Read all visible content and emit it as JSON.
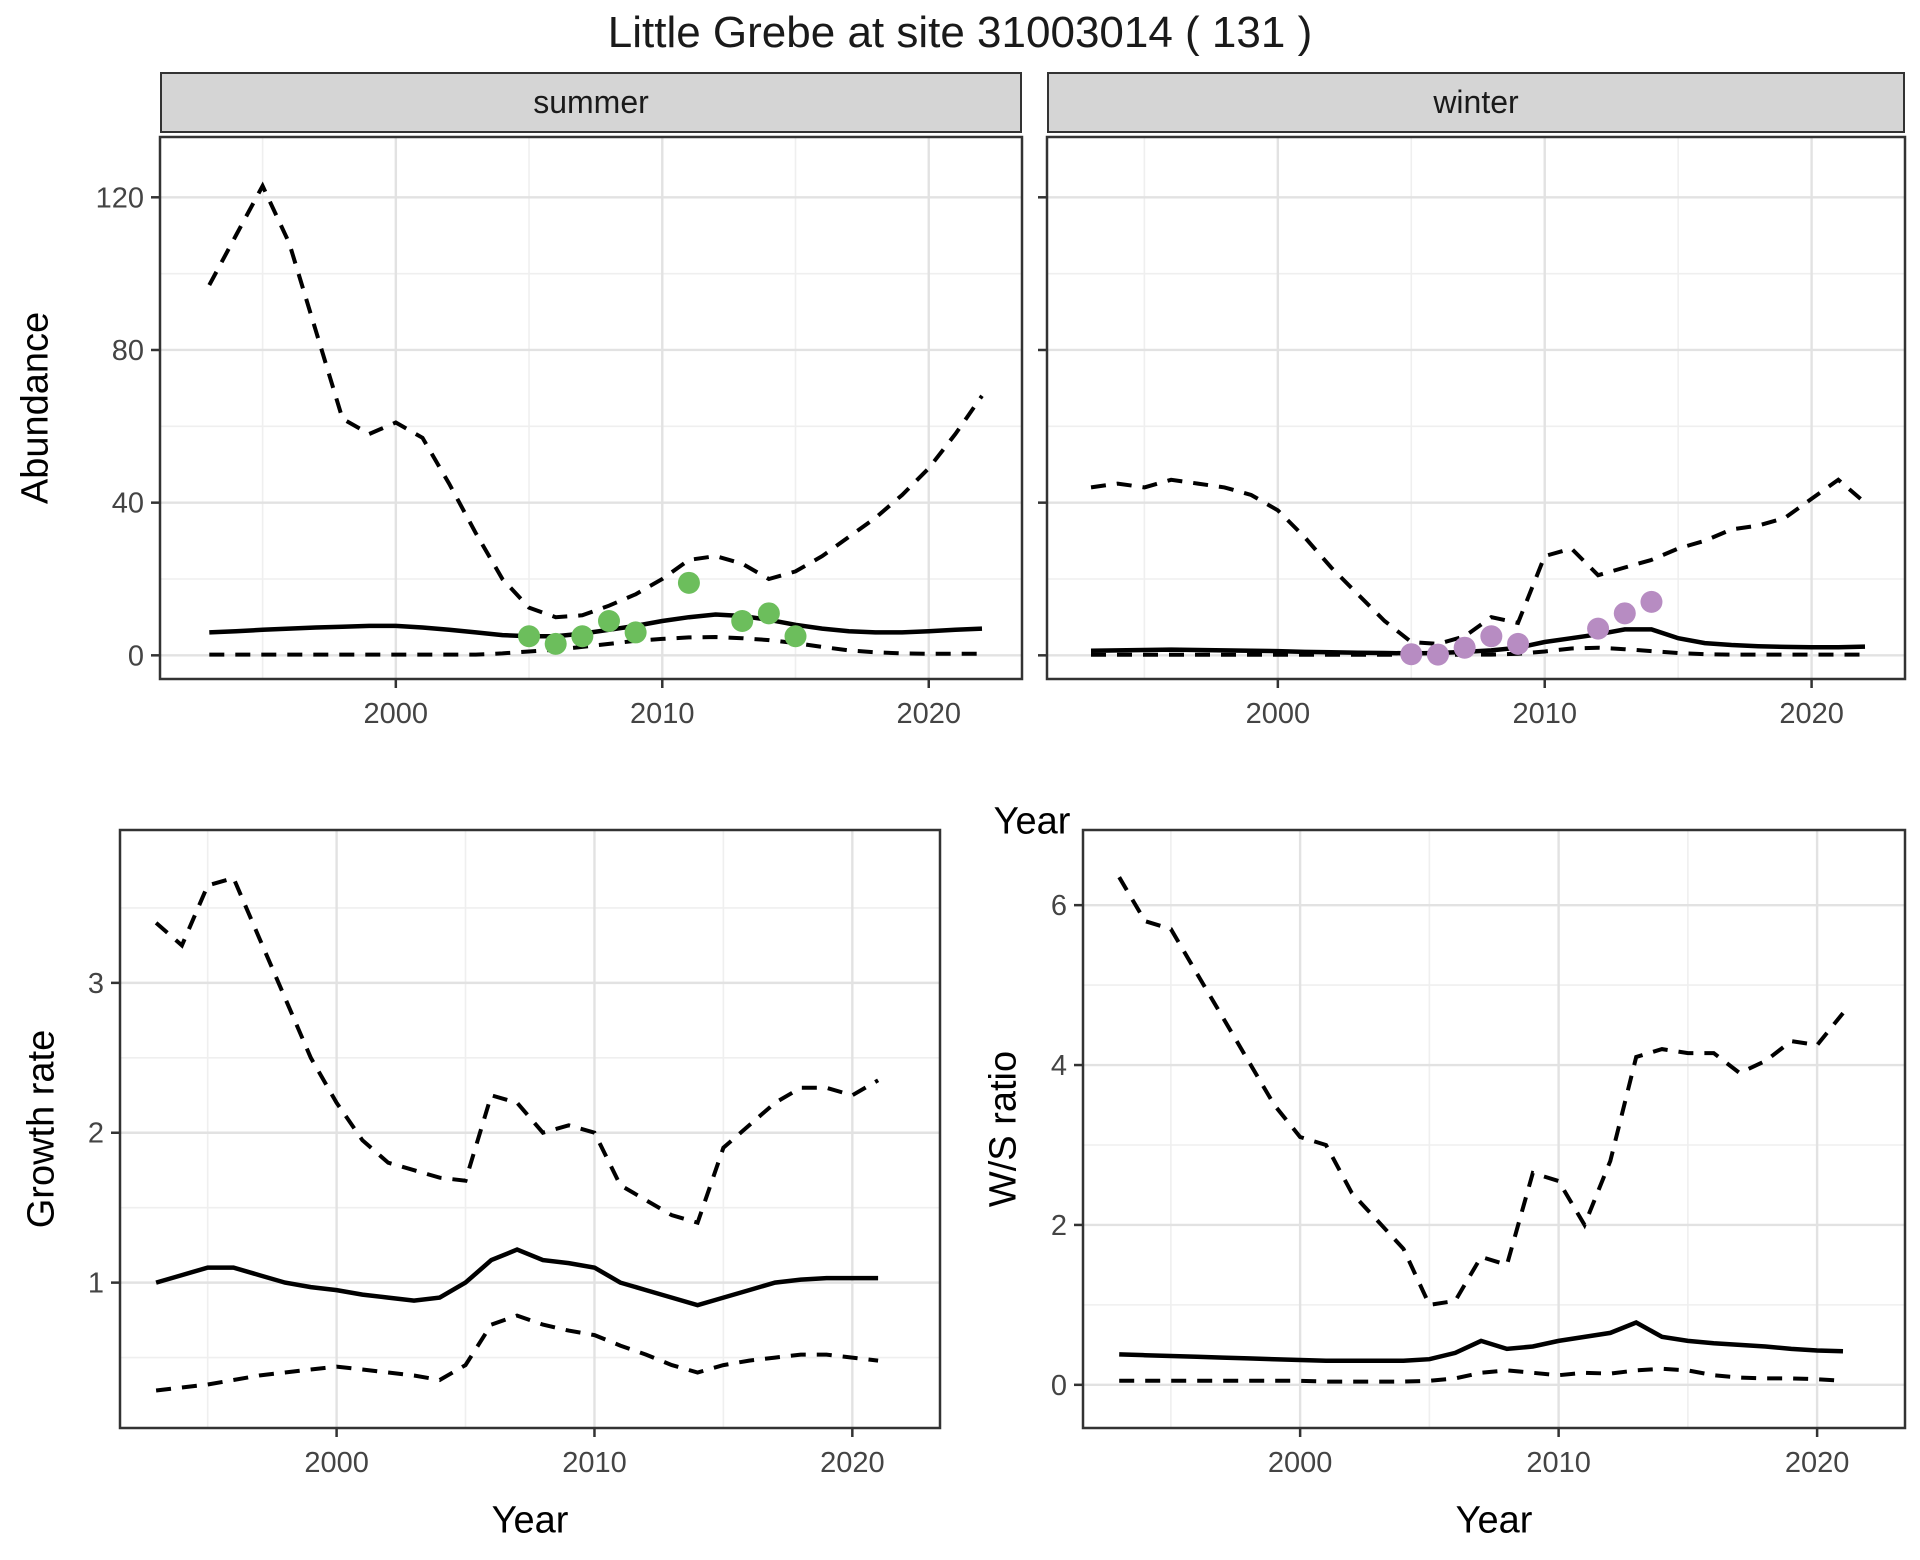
{
  "title": "Little Grebe at site 31003014 ( 131 )",
  "facets": {
    "summer": "summer",
    "winter": "winter"
  },
  "axis_titles": {
    "abundance": "Abundance",
    "year_top": "Year",
    "year_bottom_left": "Year",
    "year_bottom_right": "Year",
    "growth": "Growth rate",
    "ratio": "W/S ratio"
  },
  "colors": {
    "summer_points": "#6cbe5c",
    "winter_points": "#b78cc2",
    "line": "#000000",
    "grid_major": "#e2e2e2",
    "grid_minor": "#efefef",
    "panel_border": "#333333",
    "strip_fill": "#d5d5d5",
    "tick_text": "#444444"
  },
  "chart_data": [
    {
      "key": "summer",
      "type": "line",
      "title": "summer",
      "xlabel": "Year",
      "ylabel": "Abundance",
      "xlim": [
        1991.15,
        2023.5
      ],
      "ylim": [
        -6.2,
        135.8
      ],
      "xticks": [
        2000,
        2010,
        2020
      ],
      "xminor": [
        1995,
        2005,
        2015
      ],
      "yticks": [
        0,
        40,
        80,
        120
      ],
      "yminor": [
        20,
        60,
        100
      ],
      "x": [
        1993,
        1994,
        1995,
        1996,
        1997,
        1998,
        1999,
        2000,
        2001,
        2002,
        2003,
        2004,
        2005,
        2006,
        2007,
        2008,
        2009,
        2010,
        2011,
        2012,
        2013,
        2014,
        2015,
        2016,
        2017,
        2018,
        2019,
        2020,
        2021,
        2022
      ],
      "series": [
        {
          "name": "mean",
          "style": "solid",
          "values": [
            6,
            6.3,
            6.7,
            7,
            7.3,
            7.5,
            7.7,
            7.7,
            7.3,
            6.7,
            6,
            5.3,
            5,
            5,
            5.7,
            6.7,
            7.7,
            9,
            10,
            10.7,
            10.3,
            9.3,
            8,
            7,
            6.3,
            6,
            6,
            6.3,
            6.7,
            7
          ]
        },
        {
          "name": "upper-ci",
          "style": "dashed",
          "values": [
            97,
            110,
            123,
            108,
            85,
            62,
            58,
            61,
            57,
            45,
            32,
            20,
            12.5,
            10,
            10.5,
            13,
            16,
            20,
            25,
            26,
            24,
            20,
            22,
            26,
            31,
            36,
            42,
            49,
            58,
            68
          ]
        },
        {
          "name": "lower-ci",
          "style": "dashed",
          "values": [
            0.2,
            0.2,
            0.2,
            0.2,
            0.2,
            0.2,
            0.2,
            0.2,
            0.2,
            0.2,
            0.2,
            0.5,
            1,
            1.5,
            2.2,
            3,
            3.8,
            4.3,
            4.7,
            4.8,
            4.5,
            4,
            3.2,
            2.2,
            1.3,
            0.8,
            0.5,
            0.4,
            0.4,
            0.4
          ]
        }
      ],
      "points": {
        "name": "observed-counts",
        "color_key": "summer_points",
        "xy": [
          [
            2005,
            5
          ],
          [
            2006,
            3
          ],
          [
            2007,
            5
          ],
          [
            2008,
            9
          ],
          [
            2009,
            6
          ],
          [
            2011,
            19
          ],
          [
            2013,
            9
          ],
          [
            2014,
            11
          ],
          [
            2015,
            5
          ]
        ]
      }
    },
    {
      "key": "winter",
      "type": "line",
      "title": "winter",
      "xlabel": "Year",
      "ylabel": "Abundance",
      "xlim": [
        1991.35,
        2023.5
      ],
      "ylim": [
        -6.2,
        135.8
      ],
      "xticks": [
        2000,
        2010,
        2020
      ],
      "xminor": [
        1995,
        2005,
        2015
      ],
      "yticks": [
        0,
        40,
        80,
        120
      ],
      "yminor": [
        20,
        60,
        100
      ],
      "x": [
        1993,
        1994,
        1995,
        1996,
        1997,
        1998,
        1999,
        2000,
        2001,
        2002,
        2003,
        2004,
        2005,
        2006,
        2007,
        2008,
        2009,
        2010,
        2011,
        2012,
        2013,
        2014,
        2015,
        2016,
        2017,
        2018,
        2019,
        2020,
        2021,
        2022
      ],
      "series": [
        {
          "name": "mean",
          "style": "solid",
          "values": [
            1.2,
            1.3,
            1.4,
            1.5,
            1.4,
            1.3,
            1.2,
            1.1,
            0.9,
            0.8,
            0.7,
            0.6,
            0.5,
            0.6,
            0.9,
            1.3,
            2,
            3.5,
            4.5,
            5.5,
            6.8,
            6.8,
            4.5,
            3.2,
            2.7,
            2.4,
            2.2,
            2.1,
            2.1,
            2.3
          ]
        },
        {
          "name": "upper-ci",
          "style": "dashed",
          "values": [
            44,
            45,
            44,
            46,
            45,
            44,
            42,
            38,
            31,
            23,
            16,
            9,
            3.5,
            3,
            5,
            10,
            8.5,
            26,
            28,
            21,
            23,
            25,
            28,
            30,
            33,
            34,
            36,
            41,
            46,
            40
          ]
        },
        {
          "name": "lower-ci",
          "style": "dashed",
          "values": [
            0.15,
            0.15,
            0.15,
            0.15,
            0.15,
            0.15,
            0.15,
            0.15,
            0.15,
            0.15,
            0.15,
            0.15,
            0.15,
            0.15,
            0.15,
            0.2,
            0.4,
            1,
            1.8,
            2,
            1.6,
            1.1,
            0.6,
            0.3,
            0.2,
            0.2,
            0.2,
            0.2,
            0.2,
            0.2
          ]
        }
      ],
      "points": {
        "name": "observed-counts",
        "color_key": "winter_points",
        "xy": [
          [
            2005,
            0.3
          ],
          [
            2006,
            0.2
          ],
          [
            2007,
            2
          ],
          [
            2008,
            5
          ],
          [
            2009,
            3
          ],
          [
            2012,
            7
          ],
          [
            2013,
            11
          ],
          [
            2014,
            14
          ]
        ]
      }
    },
    {
      "key": "growth",
      "type": "line",
      "title": "Growth rate",
      "xlabel": "Year",
      "ylabel": "Growth rate",
      "xlim": [
        1991.6,
        2023.4
      ],
      "ylim": [
        0.03,
        4.02
      ],
      "xticks": [
        2000,
        2010,
        2020
      ],
      "xminor": [
        1995,
        2005,
        2015
      ],
      "yticks": [
        1,
        2,
        3
      ],
      "yminor": [
        0.5,
        1.5,
        2.5,
        3.5
      ],
      "x": [
        1993,
        1994,
        1995,
        1996,
        1997,
        1998,
        1999,
        2000,
        2001,
        2002,
        2003,
        2004,
        2005,
        2006,
        2007,
        2008,
        2009,
        2010,
        2011,
        2012,
        2013,
        2014,
        2015,
        2016,
        2017,
        2018,
        2019,
        2020,
        2021
      ],
      "series": [
        {
          "name": "mean",
          "style": "solid",
          "values": [
            1.0,
            1.05,
            1.1,
            1.1,
            1.05,
            1.0,
            0.97,
            0.95,
            0.92,
            0.9,
            0.88,
            0.9,
            1.0,
            1.15,
            1.22,
            1.15,
            1.13,
            1.1,
            1.0,
            0.95,
            0.9,
            0.85,
            0.9,
            0.95,
            1.0,
            1.02,
            1.03,
            1.03,
            1.03
          ]
        },
        {
          "name": "upper-ci",
          "style": "dashed",
          "values": [
            3.4,
            3.25,
            3.65,
            3.7,
            3.3,
            2.9,
            2.5,
            2.2,
            1.95,
            1.8,
            1.75,
            1.7,
            1.68,
            2.25,
            2.2,
            2.0,
            2.05,
            2.0,
            1.65,
            1.55,
            1.45,
            1.4,
            1.9,
            2.05,
            2.2,
            2.3,
            2.3,
            2.25,
            2.35
          ]
        },
        {
          "name": "lower-ci",
          "style": "dashed",
          "values": [
            0.28,
            0.3,
            0.32,
            0.35,
            0.38,
            0.4,
            0.42,
            0.44,
            0.42,
            0.4,
            0.38,
            0.35,
            0.45,
            0.72,
            0.78,
            0.72,
            0.68,
            0.65,
            0.58,
            0.52,
            0.45,
            0.4,
            0.45,
            0.48,
            0.5,
            0.52,
            0.52,
            0.5,
            0.48
          ]
        }
      ],
      "points": null
    },
    {
      "key": "ratio",
      "type": "line",
      "title": "W/S ratio",
      "xlabel": "Year",
      "ylabel": "W/S ratio",
      "xlim": [
        1991.6,
        2023.4
      ],
      "ylim": [
        -0.54,
        6.94
      ],
      "xticks": [
        2000,
        2010,
        2020
      ],
      "xminor": [
        1995,
        2005,
        2015
      ],
      "yticks": [
        0,
        2,
        4,
        6
      ],
      "yminor": [
        1,
        3,
        5
      ],
      "x": [
        1993,
        1994,
        1995,
        1996,
        1997,
        1998,
        1999,
        2000,
        2001,
        2002,
        2003,
        2004,
        2005,
        2006,
        2007,
        2008,
        2009,
        2010,
        2011,
        2012,
        2013,
        2014,
        2015,
        2016,
        2017,
        2018,
        2019,
        2020,
        2021
      ],
      "series": [
        {
          "name": "mean",
          "style": "solid",
          "values": [
            0.38,
            0.37,
            0.36,
            0.35,
            0.34,
            0.33,
            0.32,
            0.31,
            0.3,
            0.3,
            0.3,
            0.3,
            0.32,
            0.4,
            0.55,
            0.45,
            0.48,
            0.55,
            0.6,
            0.65,
            0.78,
            0.6,
            0.55,
            0.52,
            0.5,
            0.48,
            0.45,
            0.43,
            0.42
          ]
        },
        {
          "name": "upper-ci",
          "style": "dashed",
          "values": [
            6.35,
            5.8,
            5.7,
            5.15,
            4.6,
            4.05,
            3.5,
            3.1,
            3.0,
            2.4,
            2.05,
            1.7,
            1.0,
            1.05,
            1.6,
            1.5,
            2.65,
            2.55,
            2.0,
            2.8,
            4.1,
            4.2,
            4.15,
            4.15,
            3.9,
            4.05,
            4.3,
            4.25,
            4.65
          ]
        },
        {
          "name": "lower-ci",
          "style": "dashed",
          "values": [
            0.05,
            0.05,
            0.05,
            0.05,
            0.05,
            0.05,
            0.05,
            0.05,
            0.04,
            0.04,
            0.04,
            0.04,
            0.05,
            0.08,
            0.15,
            0.18,
            0.15,
            0.12,
            0.15,
            0.14,
            0.18,
            0.2,
            0.18,
            0.12,
            0.09,
            0.08,
            0.08,
            0.07,
            0.05
          ]
        }
      ],
      "points": null
    }
  ]
}
